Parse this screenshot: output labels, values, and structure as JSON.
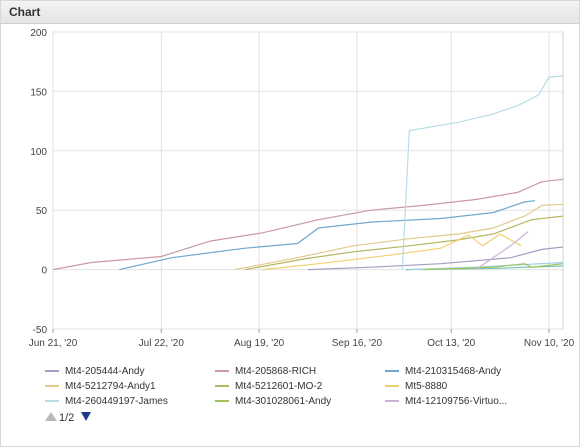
{
  "panel": {
    "title": "Chart"
  },
  "chart_data": {
    "type": "line",
    "title": "",
    "xlabel": "",
    "ylabel": "",
    "ylim": [
      -50,
      200
    ],
    "yticks": [
      -50,
      0,
      50,
      100,
      150,
      200
    ],
    "xlim": [
      "2020-06-21",
      "2020-11-14"
    ],
    "xticks": [
      {
        "label": "Jun 21, '20",
        "date": "2020-06-21"
      },
      {
        "label": "Jul 22, '20",
        "date": "2020-07-22"
      },
      {
        "label": "Aug 19, '20",
        "date": "2020-08-19"
      },
      {
        "label": "Sep 16, '20",
        "date": "2020-09-16"
      },
      {
        "label": "Oct 13, '20",
        "date": "2020-10-13"
      },
      {
        "label": "Nov 10, '20",
        "date": "2020-11-10"
      }
    ],
    "grid": true,
    "legend_position": "bottom",
    "series": [
      {
        "name": "Mt4-205444-Andy",
        "color": "#a99cc4",
        "points": [
          [
            "2020-09-02",
            0
          ],
          [
            "2020-09-20",
            2
          ],
          [
            "2020-10-10",
            5
          ],
          [
            "2020-10-30",
            10
          ],
          [
            "2020-11-08",
            17
          ],
          [
            "2020-11-14",
            19
          ]
        ]
      },
      {
        "name": "Mt4-205868-RICH",
        "color": "#c99aa1",
        "points": [
          [
            "2020-06-21",
            0
          ],
          [
            "2020-07-02",
            6
          ],
          [
            "2020-07-22",
            11
          ],
          [
            "2020-08-05",
            24
          ],
          [
            "2020-08-20",
            31
          ],
          [
            "2020-09-05",
            42
          ],
          [
            "2020-09-20",
            50
          ],
          [
            "2020-10-05",
            54
          ],
          [
            "2020-10-20",
            59
          ],
          [
            "2020-11-01",
            65
          ],
          [
            "2020-11-08",
            74
          ],
          [
            "2020-11-14",
            76
          ]
        ]
      },
      {
        "name": "Mt4-210315468-Andy",
        "color": "#6fa8cf",
        "points": [
          [
            "2020-07-10",
            0
          ],
          [
            "2020-07-25",
            10
          ],
          [
            "2020-08-15",
            18
          ],
          [
            "2020-08-30",
            22
          ],
          [
            "2020-09-05",
            35
          ],
          [
            "2020-09-20",
            40
          ],
          [
            "2020-10-10",
            43
          ],
          [
            "2020-10-25",
            48
          ],
          [
            "2020-11-03",
            57
          ],
          [
            "2020-11-06",
            58
          ]
        ]
      },
      {
        "name": "Mt4-5212794-Andy1",
        "color": "#e3c98c",
        "points": [
          [
            "2020-08-12",
            0
          ],
          [
            "2020-08-30",
            10
          ],
          [
            "2020-09-15",
            20
          ],
          [
            "2020-10-01",
            26
          ],
          [
            "2020-10-15",
            30
          ],
          [
            "2020-10-25",
            35
          ],
          [
            "2020-11-03",
            45
          ],
          [
            "2020-11-08",
            54
          ],
          [
            "2020-11-14",
            55
          ]
        ]
      },
      {
        "name": "Mt4-5212601-MO-2",
        "color": "#b5b562",
        "points": [
          [
            "2020-08-15",
            0
          ],
          [
            "2020-09-01",
            9
          ],
          [
            "2020-09-15",
            15
          ],
          [
            "2020-10-01",
            20
          ],
          [
            "2020-10-15",
            25
          ],
          [
            "2020-10-25",
            30
          ],
          [
            "2020-11-05",
            42
          ],
          [
            "2020-11-14",
            45
          ]
        ]
      },
      {
        "name": "Mt5-8880",
        "color": "#f0d070",
        "points": [
          [
            "2020-08-20",
            0
          ],
          [
            "2020-09-05",
            5
          ],
          [
            "2020-09-25",
            12
          ],
          [
            "2020-10-10",
            18
          ],
          [
            "2020-10-18",
            29
          ],
          [
            "2020-10-22",
            20
          ],
          [
            "2020-10-27",
            30
          ],
          [
            "2020-11-02",
            20
          ]
        ]
      },
      {
        "name": "Mt4-260449197-James",
        "color": "#b8dde8",
        "points": [
          [
            "2020-09-29",
            0
          ],
          [
            "2020-10-01",
            117
          ],
          [
            "2020-10-15",
            124
          ],
          [
            "2020-10-25",
            131
          ],
          [
            "2020-11-01",
            138
          ],
          [
            "2020-11-07",
            147
          ],
          [
            "2020-11-10",
            162
          ],
          [
            "2020-11-14",
            163
          ]
        ]
      },
      {
        "name": "Mt4-301028061-Andy",
        "color": "#a0c35a",
        "points": [
          [
            "2020-10-05",
            0
          ],
          [
            "2020-10-25",
            2
          ],
          [
            "2020-11-03",
            5
          ],
          [
            "2020-11-05",
            2
          ],
          [
            "2020-11-14",
            5
          ]
        ]
      },
      {
        "name": "Mt4-12109756-Virtuo...",
        "color": "#cbb3d6",
        "points": [
          [
            "2020-10-20",
            0
          ],
          [
            "2020-10-30",
            20
          ],
          [
            "2020-11-04",
            32
          ]
        ]
      }
    ],
    "extra_series": [
      {
        "color": "#7cc6b6",
        "points": [
          [
            "2020-09-30",
            0
          ],
          [
            "2020-10-25",
            1
          ],
          [
            "2020-11-14",
            3
          ]
        ]
      },
      {
        "color": "#9fd1e8",
        "points": [
          [
            "2020-10-01",
            0
          ],
          [
            "2020-10-20",
            2
          ],
          [
            "2020-11-14",
            6
          ]
        ]
      }
    ]
  },
  "pager": {
    "current": 1,
    "total": 2,
    "text": "1/2",
    "prev_icon": "triangle-up-icon",
    "next_icon": "triangle-down-icon"
  }
}
